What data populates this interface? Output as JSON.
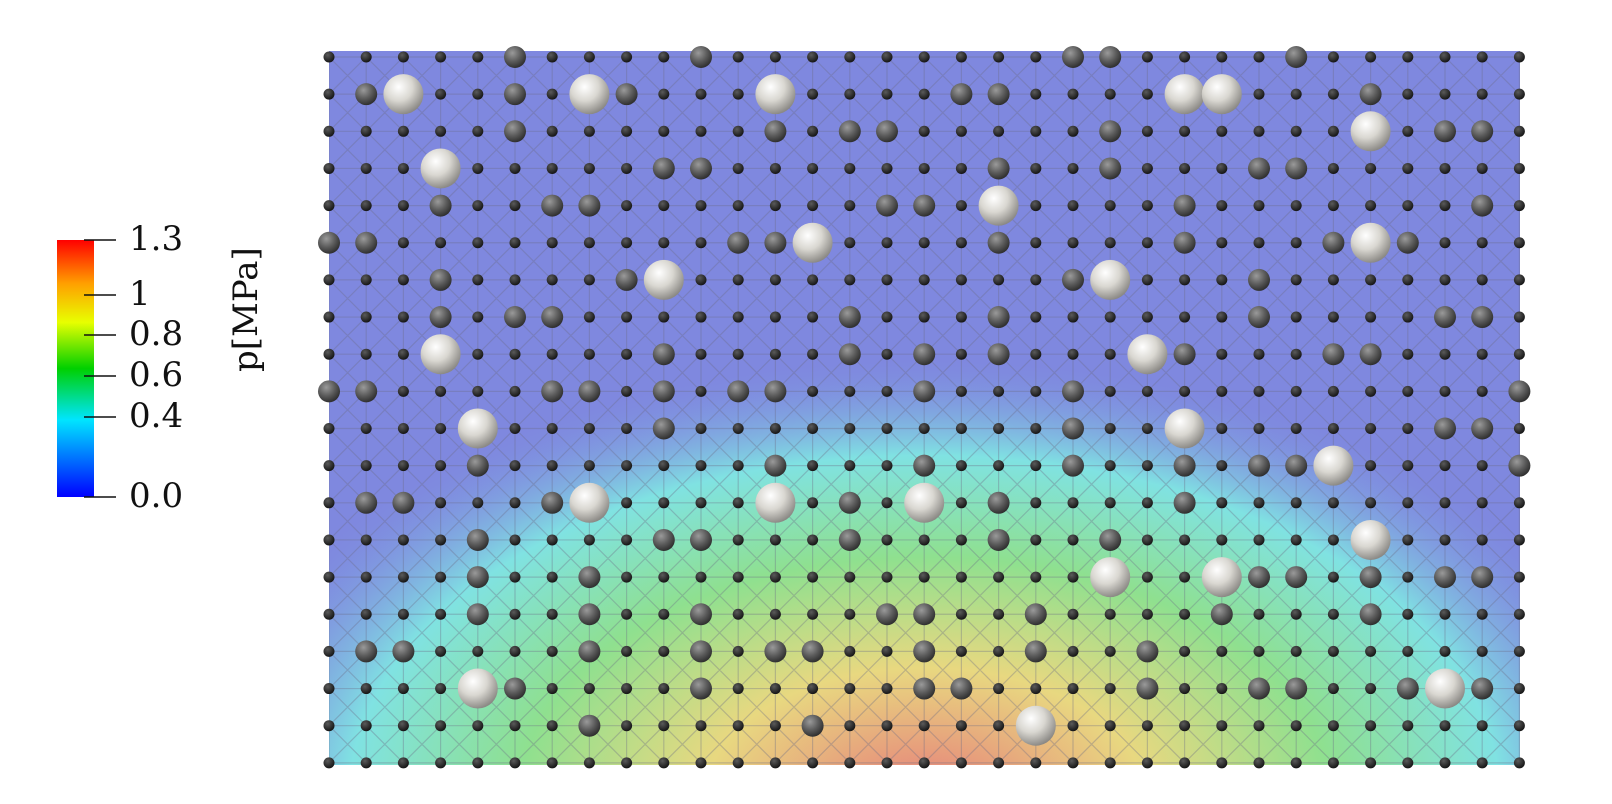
{
  "colorbar": {
    "title": "p[MPa]",
    "tick_labels": [
      "1.3",
      "1",
      "0.8",
      "0.6",
      "0.4",
      "0.0"
    ],
    "tick_values": [
      1.3,
      1.0,
      0.8,
      0.6,
      0.4,
      0.0
    ],
    "range": [
      0.0,
      1.3
    ],
    "colormap": [
      "#0000ff",
      "#00e5ff",
      "#00d000",
      "#e8ff00",
      "#ffa000",
      "#ff0000"
    ]
  },
  "field": {
    "type": "pressure-contour-on-triangulated-mesh",
    "grid_cols": 33,
    "grid_rows": 20,
    "low_color": "#7f88df",
    "high_color": "#e77d7d"
  },
  "particles": {
    "small_color": "#2a2a2a",
    "medium_color": "#5a5a5a",
    "large_color": "#d8d6d0"
  }
}
